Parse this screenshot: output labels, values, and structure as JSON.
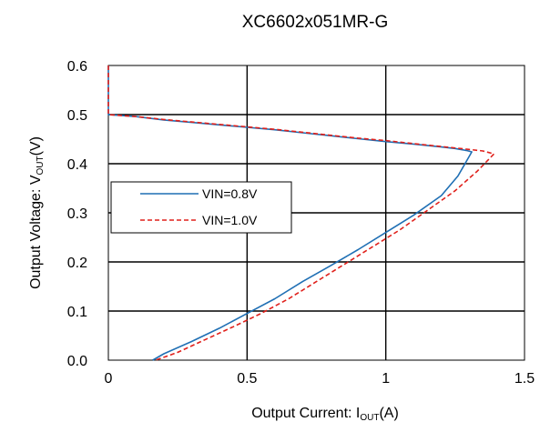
{
  "chart_data": {
    "type": "line",
    "title": "XC6602x051MR-G",
    "xlabel": {
      "main": "Output Current: I",
      "sub": "OUT",
      "tail": "(A)"
    },
    "ylabel": {
      "main": "Output Voltage: V",
      "sub": "OUT",
      "tail": "(V)"
    },
    "xlim": [
      0,
      1.5
    ],
    "ylim": [
      0,
      0.6
    ],
    "x_ticks": [
      "0",
      "0.5",
      "1",
      "1.5"
    ],
    "y_ticks": [
      "0.0",
      "0.1",
      "0.2",
      "0.3",
      "0.4",
      "0.5",
      "0.6"
    ],
    "grid": true,
    "legend_position": "left-middle",
    "series": [
      {
        "name": "VIN=0.8V",
        "color": "#1f6fb4",
        "dash": "solid",
        "x": [
          0.0,
          0.0,
          0.1,
          0.2,
          0.3,
          0.4,
          0.5,
          0.6,
          0.7,
          0.8,
          0.9,
          1.0,
          1.1,
          1.2,
          1.25,
          1.29,
          1.31,
          1.26,
          1.2,
          1.1,
          1.0,
          0.9,
          0.8,
          0.7,
          0.6,
          0.5,
          0.4,
          0.3,
          0.2,
          0.16
        ],
        "y": [
          0.6,
          0.5,
          0.496,
          0.489,
          0.484,
          0.479,
          0.474,
          0.469,
          0.463,
          0.457,
          0.451,
          0.445,
          0.44,
          0.434,
          0.431,
          0.427,
          0.424,
          0.375,
          0.335,
          0.295,
          0.26,
          0.225,
          0.192,
          0.16,
          0.125,
          0.095,
          0.065,
          0.038,
          0.013,
          0.0
        ]
      },
      {
        "name": "VIN=1.0V",
        "color": "#e0201b",
        "dash": "dashed",
        "x": [
          0.0,
          0.0,
          0.1,
          0.2,
          0.3,
          0.4,
          0.5,
          0.6,
          0.7,
          0.8,
          0.9,
          1.0,
          1.1,
          1.2,
          1.3,
          1.35,
          1.39,
          1.33,
          1.25,
          1.15,
          1.05,
          0.95,
          0.85,
          0.75,
          0.65,
          0.55,
          0.45,
          0.35,
          0.25,
          0.17
        ],
        "y": [
          0.6,
          0.5,
          0.496,
          0.49,
          0.485,
          0.48,
          0.475,
          0.47,
          0.464,
          0.458,
          0.452,
          0.447,
          0.441,
          0.435,
          0.429,
          0.426,
          0.42,
          0.385,
          0.345,
          0.305,
          0.265,
          0.23,
          0.195,
          0.16,
          0.125,
          0.095,
          0.068,
          0.042,
          0.016,
          0.0
        ]
      }
    ]
  }
}
